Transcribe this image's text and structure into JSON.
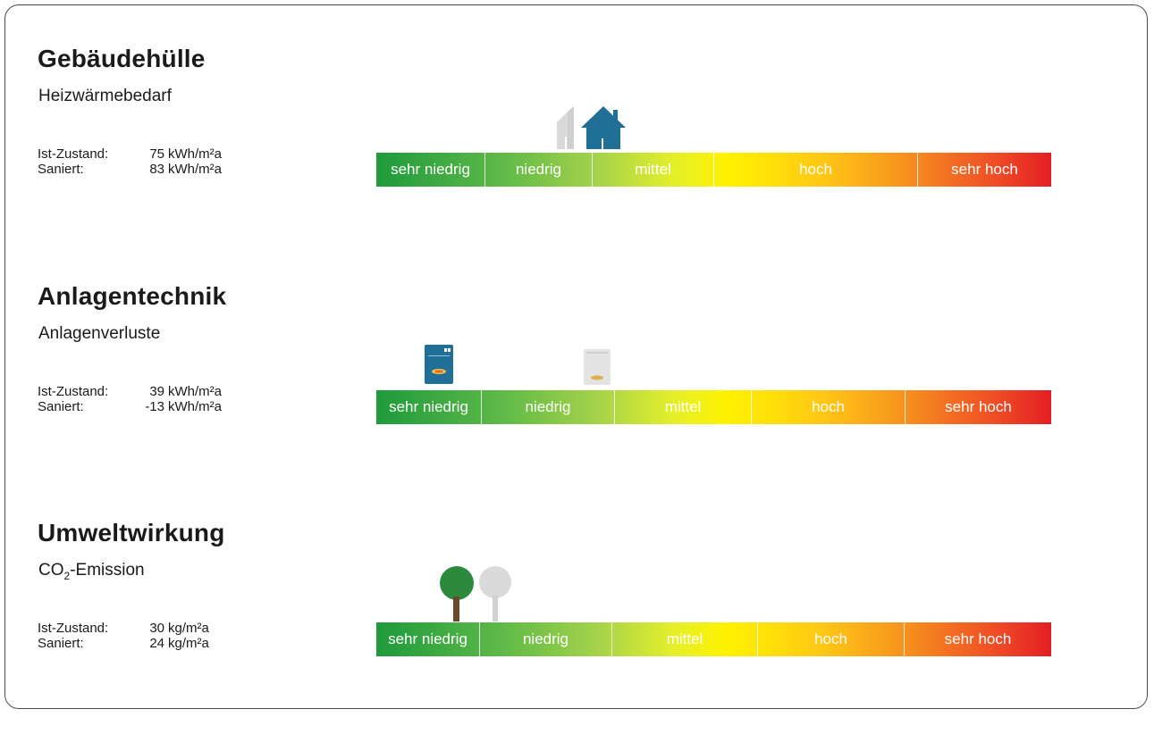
{
  "sections": [
    {
      "title": "Gebäudehülle",
      "subtitle": "Heizwärmebedarf",
      "ist_label": "Ist-Zustand:",
      "ist_value": "75",
      "ist_unit": "kWh/m²a",
      "saniert_label": "Saniert:",
      "saniert_value": "83",
      "saniert_unit": "kWh/m²a",
      "scale": [
        "sehr niedrig",
        "niedrig",
        "mittel",
        "hoch",
        "sehr hoch"
      ],
      "icon": "house-icon"
    },
    {
      "title": "Anlagentechnik",
      "subtitle": "Anlagenverluste",
      "ist_label": "Ist-Zustand:",
      "ist_value": "39",
      "ist_unit": "kWh/m²a",
      "saniert_label": "Saniert:",
      "saniert_value": "-13",
      "saniert_unit": "kWh/m²a",
      "scale": [
        "sehr niedrig",
        "niedrig",
        "mittel",
        "hoch",
        "sehr hoch"
      ],
      "icon": "heating-unit-icon"
    },
    {
      "title": "Umweltwirkung",
      "subtitle_main": "CO",
      "subtitle_sub": "2",
      "subtitle_rest": "-Emission",
      "ist_label": "Ist-Zustand:",
      "ist_value": "30",
      "ist_unit": "kg/m²a",
      "saniert_label": "Saniert:",
      "saniert_value": "24",
      "saniert_unit": "kg/m²a",
      "scale": [
        "sehr niedrig",
        "niedrig",
        "mittel",
        "hoch",
        "sehr hoch"
      ],
      "icon": "tree-icon"
    }
  ],
  "colors": {
    "marker_current": "#1f6f97",
    "marker_renovated": "#dcdcdc",
    "tree_current": "#2c8a3e",
    "scale_start": "#1e9a3c",
    "scale_end": "#e31e24"
  }
}
